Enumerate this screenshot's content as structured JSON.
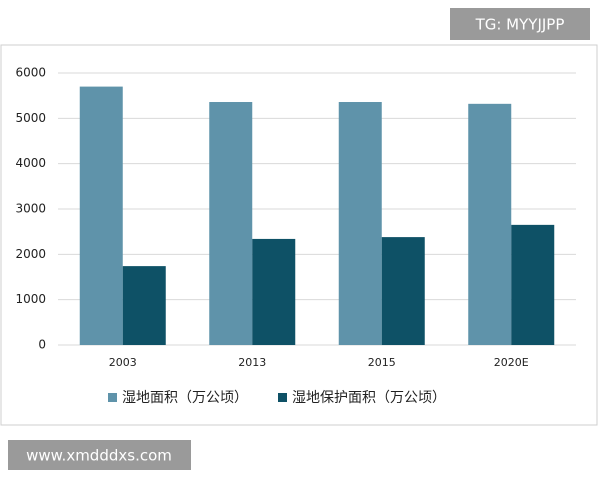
{
  "chart_data": {
    "type": "bar",
    "categories": [
      "2003",
      "2013",
      "2015",
      "2020E"
    ],
    "series": [
      {
        "name": "湿地面积（万公顷）",
        "color": "#5f93aa",
        "values": [
          5700,
          5360,
          5360,
          5320
        ]
      },
      {
        "name": "湿地保护面积（万公顷）",
        "color": "#0e5166",
        "values": [
          1740,
          2340,
          2380,
          2650
        ]
      }
    ],
    "ylim": [
      0,
      6000
    ],
    "yticks": [
      0,
      1000,
      2000,
      3000,
      4000,
      5000,
      6000
    ],
    "grid": true
  },
  "watermarks": [
    "TG: MYYJJPP",
    "www.xmdddxs.com"
  ]
}
